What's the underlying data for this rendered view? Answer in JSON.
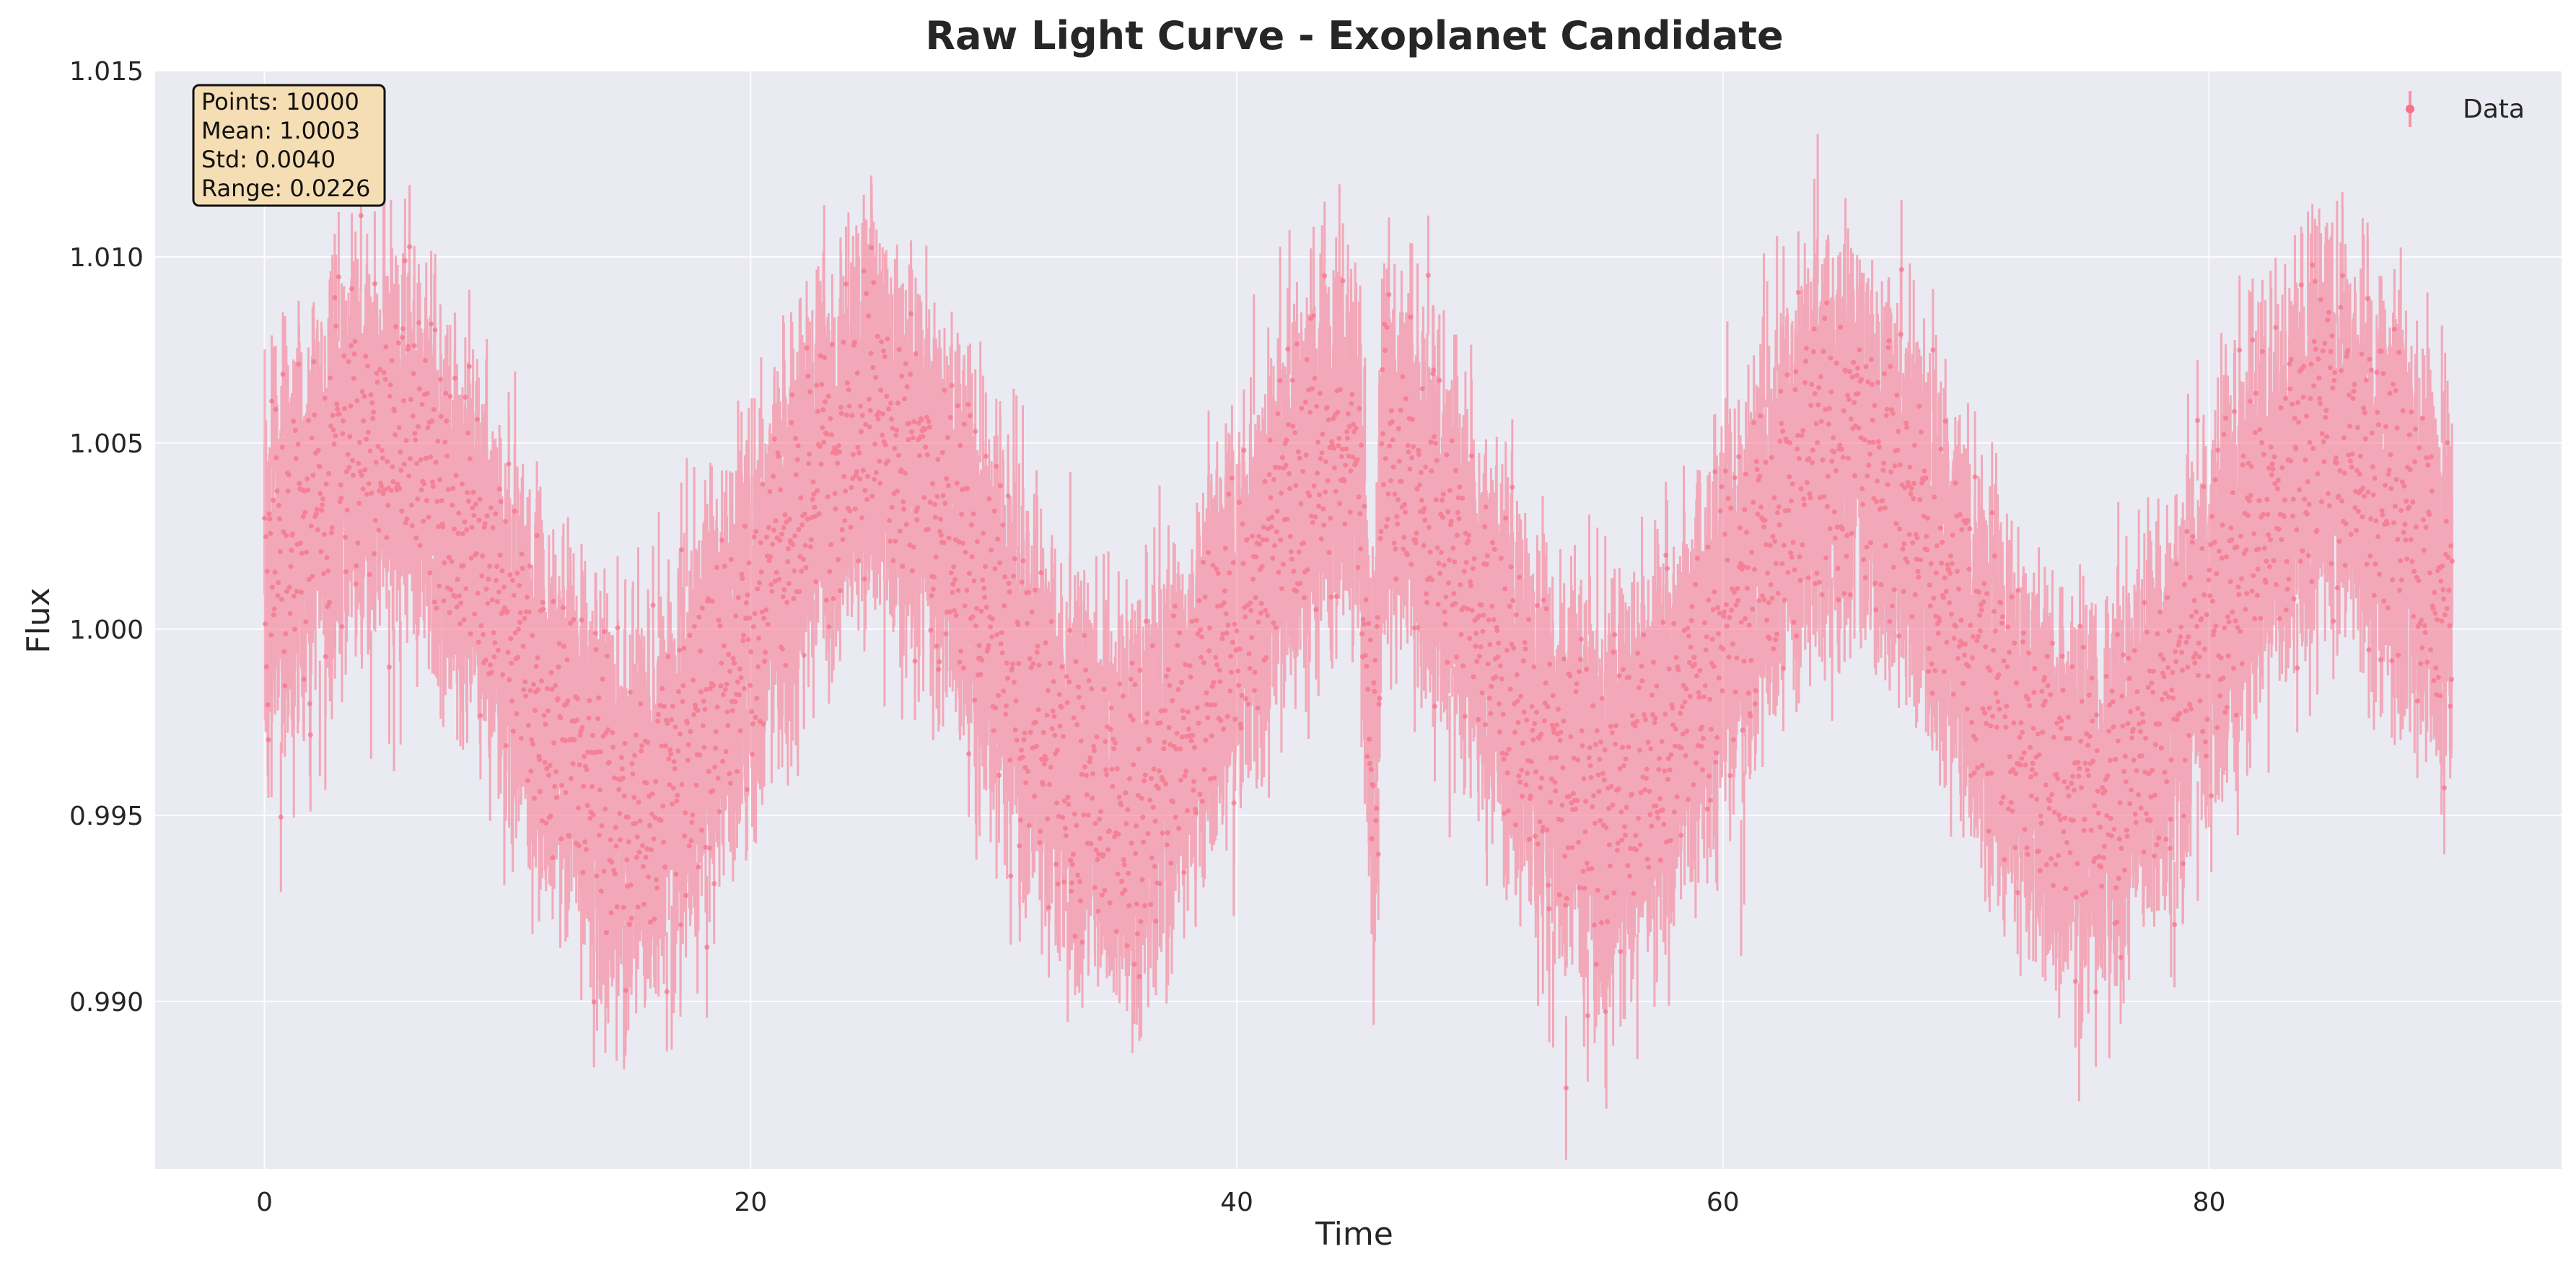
{
  "chart_data": {
    "type": "line",
    "title": "Raw Light Curve - Exoplanet Candidate",
    "xlabel": "Time",
    "ylabel": "Flux",
    "xlim": [
      -4.5,
      94.5
    ],
    "ylim": [
      0.9855,
      1.015
    ],
    "x_ticks": [
      0,
      20,
      40,
      60,
      80
    ],
    "x_tick_labels": [
      "0",
      "20",
      "40",
      "60",
      "80"
    ],
    "y_ticks": [
      0.99,
      0.995,
      1.0,
      1.005,
      1.01,
      1.015
    ],
    "y_tick_labels": [
      "0.990",
      "0.995",
      "1.000",
      "1.005",
      "1.010",
      "1.015"
    ],
    "grid": true,
    "legend_position": "top-right",
    "plot_background": "#EAEAF2",
    "series": [
      {
        "name": "Data",
        "style": "errorbar",
        "color": "#F77189",
        "n_points": 10000,
        "x": [
          0,
          2,
          4,
          5,
          6,
          8,
          10,
          12,
          14,
          15,
          16,
          18,
          20,
          22,
          24,
          25,
          26,
          28,
          30,
          32,
          34,
          35,
          36,
          38,
          40,
          42,
          44,
          45,
          45.6,
          46,
          48,
          50,
          52,
          54,
          55,
          56,
          58,
          60,
          62,
          64,
          65,
          66,
          68,
          70,
          72,
          74,
          75,
          76,
          78,
          80,
          82,
          84,
          85,
          86,
          88,
          90
        ],
        "y": [
          1.0008,
          1.0035,
          1.0049,
          1.0052,
          1.0048,
          1.003,
          1.0001,
          0.9972,
          0.9954,
          0.9952,
          0.9955,
          0.9975,
          1.0002,
          1.003,
          1.0049,
          1.0051,
          1.0048,
          1.003,
          1.0002,
          0.9973,
          0.9954,
          0.9952,
          0.9955,
          0.9975,
          1.0003,
          1.003,
          1.0047,
          1.0049,
          0.9955,
          1.0048,
          1.0028,
          1.0001,
          0.9973,
          0.9954,
          0.9951,
          0.9955,
          0.9975,
          1.0002,
          1.003,
          1.0049,
          1.0052,
          1.0048,
          1.003,
          1.0001,
          0.9972,
          0.9953,
          0.9951,
          0.9955,
          0.9975,
          1.0002,
          1.003,
          1.0048,
          1.0051,
          1.0048,
          1.003,
          1.0005
        ],
        "noise_std": 0.002,
        "error": 0.0018
      }
    ],
    "stats_box": {
      "lines": [
        "Points: 10000",
        "Mean: 1.0003",
        "Std: 0.0040",
        "Range: 0.0226"
      ]
    }
  }
}
